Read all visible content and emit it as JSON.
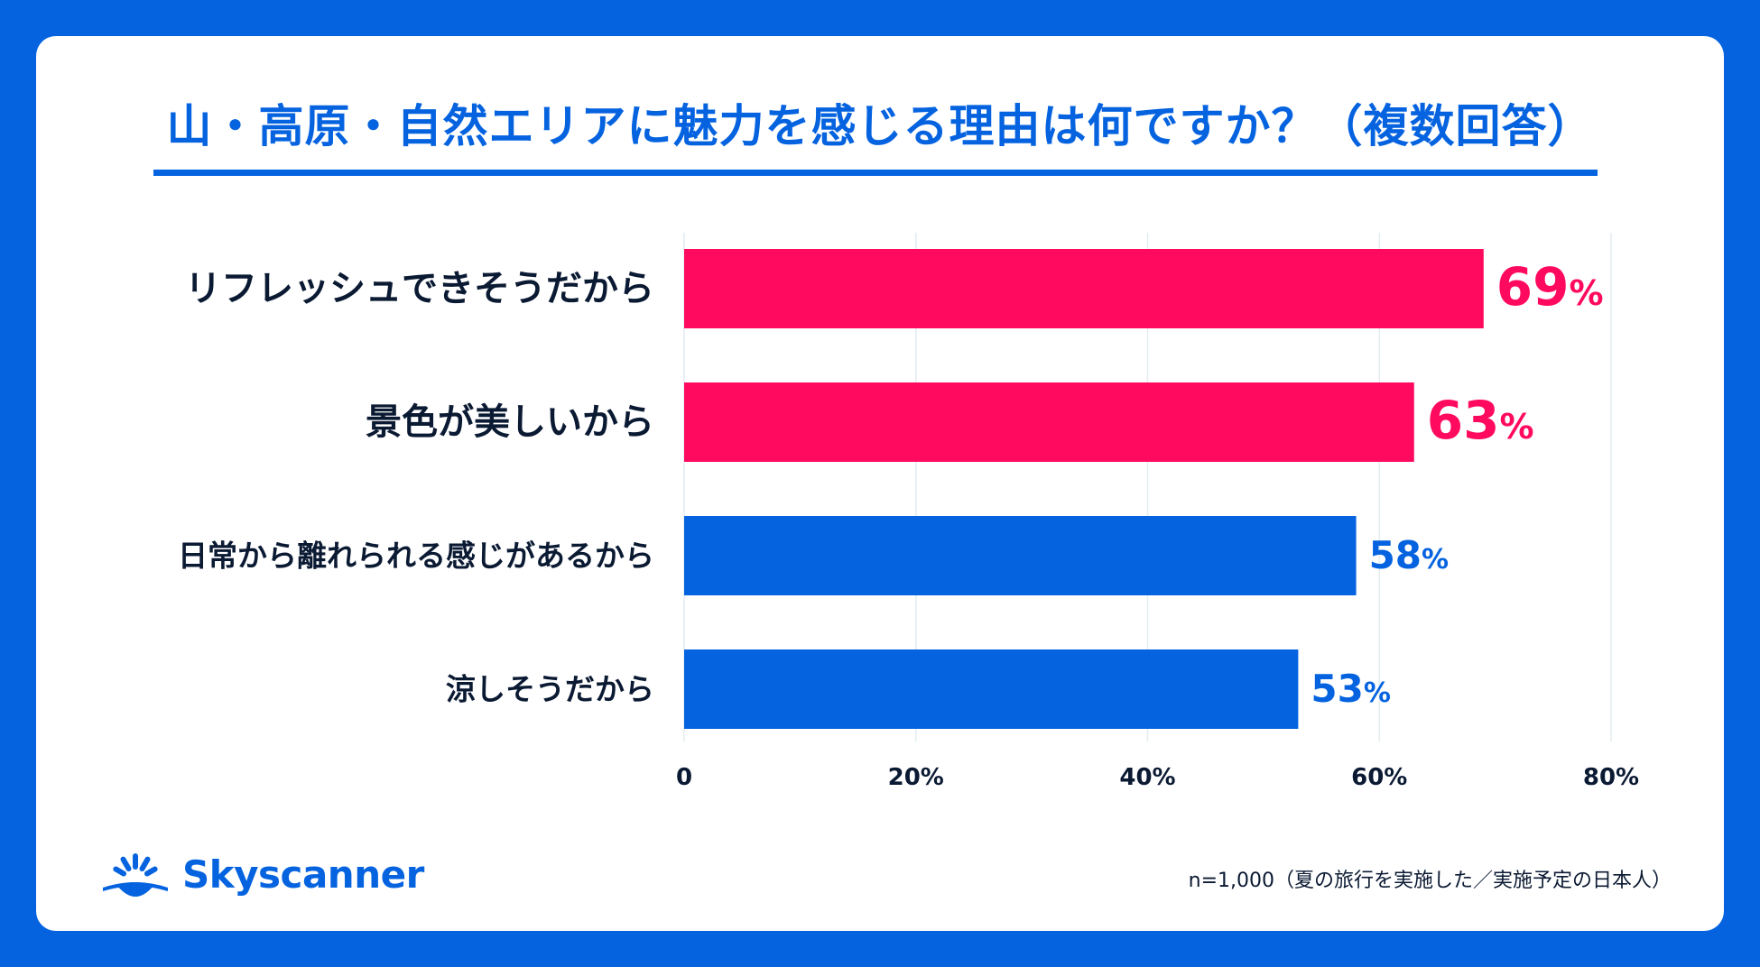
{
  "colors": {
    "background": "#0563e0",
    "card": "#ffffff",
    "accent_blue": "#0563e0",
    "highlight_pink": "#ff0a5e",
    "text_dark": "#0b1a33",
    "grid": "#e3ecef"
  },
  "chart_data": {
    "type": "bar",
    "orientation": "horizontal",
    "title": "山・高原・自然エリアに魅力を感じる理由は何ですか？（複数回答）",
    "categories": [
      "リフレッシュできそうだから",
      "景色が美しいから",
      "日常から離れられる感じがあるから",
      "涼しそうだから"
    ],
    "values": [
      69,
      63,
      58,
      53
    ],
    "value_labels": [
      "69",
      "63",
      "58",
      "53"
    ],
    "value_unit": "%",
    "highlight": [
      true,
      true,
      false,
      false
    ],
    "x_ticks": [
      0,
      20,
      40,
      60,
      80
    ],
    "x_tick_labels": [
      "0",
      "20%",
      "40%",
      "60%",
      "80%"
    ],
    "xlim": [
      0,
      80
    ],
    "grid": true
  },
  "footer": {
    "brand_icon": "skyscanner-sunrise-icon",
    "brand_name": "Skyscanner",
    "note": "n=1,000（夏の旅行を実施した／実施予定の日本人）"
  }
}
